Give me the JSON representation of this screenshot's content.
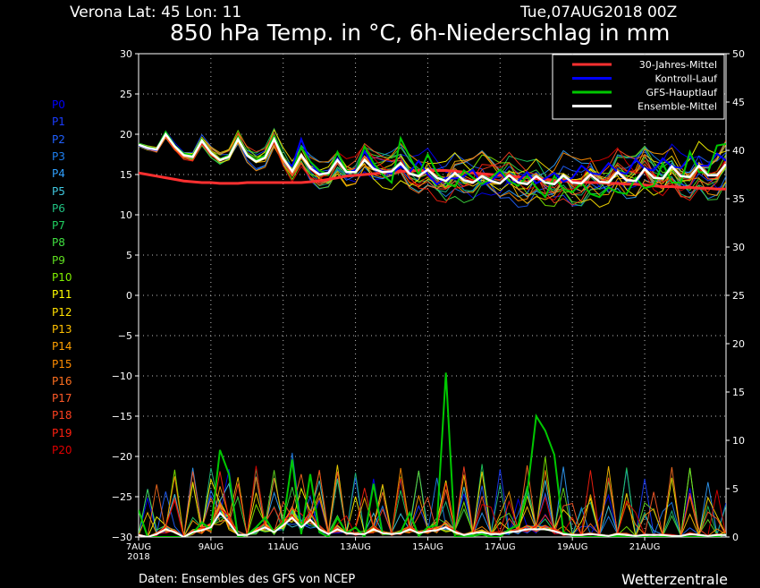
{
  "header": {
    "location": "Verona   Lat: 45 Lon: 11",
    "datetime": "Tue,07AUG2018 00Z",
    "title": "850 hPa Temp. in °C, 6h-Niederschlag in mm"
  },
  "footer": {
    "source": "Daten: Ensembles des GFS von NCEP",
    "brand": "Wetterzentrale"
  },
  "members": [
    {
      "label": "P0",
      "color": "#0000ff"
    },
    {
      "label": "P1",
      "color": "#1a3cff"
    },
    {
      "label": "P2",
      "color": "#2060ff"
    },
    {
      "label": "P3",
      "color": "#1e7ff0"
    },
    {
      "label": "P4",
      "color": "#30a0ff"
    },
    {
      "label": "P5",
      "color": "#40c8e0"
    },
    {
      "label": "P6",
      "color": "#20c080"
    },
    {
      "label": "P7",
      "color": "#20d060"
    },
    {
      "label": "P8",
      "color": "#40e040"
    },
    {
      "label": "P9",
      "color": "#60e020"
    },
    {
      "label": "P10",
      "color": "#80f000"
    },
    {
      "label": "P11",
      "color": "#ffff00"
    },
    {
      "label": "P12",
      "color": "#ffe000"
    },
    {
      "label": "P13",
      "color": "#ffc000"
    },
    {
      "label": "P14",
      "color": "#ffa000"
    },
    {
      "label": "P15",
      "color": "#ff8c00"
    },
    {
      "label": "P16",
      "color": "#ff7020"
    },
    {
      "label": "P17",
      "color": "#ff5a28"
    },
    {
      "label": "P18",
      "color": "#ff4020"
    },
    {
      "label": "P19",
      "color": "#ff2010"
    },
    {
      "label": "P20",
      "color": "#e00000"
    }
  ],
  "chart_data": {
    "type": "line",
    "x_ticks": [
      "7AUG\n2018",
      "9AUG",
      "11AUG",
      "13AUG",
      "15AUG",
      "17AUG",
      "19AUG",
      "21AUG"
    ],
    "x_tick_days": [
      0,
      2,
      4,
      6,
      8,
      10,
      12,
      14
    ],
    "x_range_days": [
      0,
      16.25
    ],
    "ylim_left": [
      -30,
      30
    ],
    "y_ticks_left": [
      30,
      25,
      20,
      15,
      10,
      5,
      0,
      -5,
      -10,
      -15,
      -20,
      -25,
      -30
    ],
    "ylim_right": [
      0,
      50
    ],
    "y_ticks_right": [
      50,
      45,
      40,
      35,
      30,
      25,
      20,
      15,
      10,
      5,
      0
    ],
    "grid": true,
    "legend_position": "top-right",
    "legend": [
      {
        "name": "30-Jahres-Mittel",
        "color": "#ff3030"
      },
      {
        "name": "Kontroll-Lauf",
        "color": "#0000ff"
      },
      {
        "name": "GFS-Hauptlauf",
        "color": "#00c800"
      },
      {
        "name": "Ensemble-Mittel",
        "color": "#ffffff"
      }
    ],
    "temp_series": [
      {
        "name": "30-Jahres-Mittel",
        "color": "#ff3030",
        "width": 3,
        "values": [
          15.2,
          15.0,
          14.8,
          14.6,
          14.4,
          14.2,
          14.1,
          14.0,
          14.0,
          13.9,
          13.9,
          13.9,
          14.0,
          14.0,
          14.0,
          14.0,
          14.0,
          14.0,
          14.0,
          14.1,
          14.2,
          14.4,
          14.6,
          14.8,
          14.9,
          15.0,
          15.1,
          15.2,
          15.3,
          15.4,
          15.4,
          15.5,
          15.5,
          15.5,
          15.5,
          15.4,
          15.3,
          15.2,
          15.1,
          15.0,
          14.9,
          14.8,
          14.7,
          14.6,
          14.5,
          14.4,
          14.3,
          14.2,
          14.2,
          14.1,
          14.0,
          14.0,
          13.9,
          13.9,
          13.8,
          13.8,
          13.7,
          13.6,
          13.5,
          13.5,
          13.4,
          13.4,
          13.3,
          13.3,
          13.2,
          13.2
        ]
      },
      {
        "name": "Kontroll-Lauf",
        "color": "#0000ff",
        "width": 2,
        "values": [
          18.6,
          18.2,
          18.0,
          20.1,
          18.6,
          17.4,
          17.2,
          19.3,
          17.8,
          16.8,
          17.2,
          19.6,
          17.4,
          16.6,
          17.2,
          19.7,
          17.0,
          16.0,
          19.4,
          16.6,
          15.0,
          15.3,
          17.0,
          15.2,
          15.6,
          17.9,
          16.0,
          15.4,
          15.1,
          16.0,
          15.3,
          16.7,
          15.0,
          13.8,
          14.6,
          14.5,
          14.8,
          15.6,
          13.7,
          14.1,
          15.4,
          13.9,
          14.2,
          15.3,
          13.9,
          14.5,
          15.2,
          14.1,
          14.6,
          16.1,
          15.2,
          15.0,
          16.4,
          15.3,
          15.1,
          16.9,
          15.7,
          15.5,
          17.0,
          16.0,
          15.8,
          17.2,
          16.1,
          16.1,
          17.6,
          16.7
        ]
      },
      {
        "name": "GFS-Hauptlauf",
        "color": "#00c800",
        "width": 2,
        "values": [
          18.8,
          18.4,
          18.2,
          20.3,
          18.6,
          17.6,
          17.4,
          19.4,
          17.8,
          16.9,
          17.4,
          19.7,
          17.6,
          16.8,
          17.4,
          19.8,
          17.2,
          15.5,
          18.4,
          16.6,
          15.5,
          15.0,
          17.8,
          15.5,
          15.2,
          18.5,
          16.4,
          15.0,
          14.0,
          19.5,
          17.2,
          15.0,
          17.5,
          15.2,
          14.0,
          13.5,
          15.5,
          14.6,
          13.8,
          14.6,
          15.6,
          14.2,
          13.6,
          14.8,
          13.4,
          12.2,
          14.8,
          13.2,
          12.8,
          14.0,
          12.6,
          12.2,
          13.4,
          12.8,
          12.6,
          14.6,
          13.3,
          13.6,
          16.4,
          14.0,
          14.0,
          17.8,
          15.3,
          15.2,
          18.6,
          18.8
        ]
      },
      {
        "name": "Ensemble-Mittel",
        "color": "#ffffff",
        "width": 2.5,
        "values": [
          18.7,
          18.3,
          18.1,
          20.0,
          18.5,
          17.4,
          17.2,
          19.2,
          17.7,
          16.8,
          17.2,
          19.4,
          17.4,
          16.6,
          17.1,
          19.4,
          17.0,
          15.4,
          17.4,
          15.8,
          15.0,
          15.2,
          16.8,
          15.3,
          15.3,
          16.8,
          15.7,
          15.3,
          15.4,
          16.4,
          15.1,
          14.8,
          15.6,
          14.6,
          14.2,
          15.2,
          14.3,
          14.0,
          14.8,
          14.2,
          13.9,
          14.9,
          14.0,
          13.8,
          14.8,
          14.0,
          13.8,
          14.9,
          14.0,
          13.9,
          15.0,
          14.1,
          14.0,
          15.3,
          14.3,
          14.2,
          15.7,
          14.6,
          14.5,
          16.0,
          14.8,
          14.7,
          16.1,
          14.9,
          14.9,
          16.3
        ]
      }
    ],
    "precip_series": [
      {
        "name": "GFS-Hauptlauf",
        "color": "#00c800",
        "width": 2,
        "values": [
          2.8,
          0,
          0,
          0,
          0,
          0,
          0.4,
          1.5,
          0.8,
          9.0,
          6.5,
          0,
          0.2,
          1.0,
          2.0,
          0.5,
          1.5,
          8.0,
          0.3,
          6.5,
          0.5,
          0,
          2.0,
          0.4,
          1.0,
          0,
          5.5,
          0.3,
          0.3,
          0.5,
          2.5,
          0.1,
          1.0,
          1.2,
          17.0,
          0,
          0.1,
          0.1,
          0.3,
          0,
          0,
          0.8,
          1.2,
          4.5,
          12.5,
          11,
          8.5,
          0.5,
          0.1,
          0,
          0,
          0,
          0,
          0.1,
          0,
          0,
          0,
          0,
          0,
          0,
          0,
          0,
          0,
          0,
          0,
          0.3
        ]
      },
      {
        "name": "Ensemble-Mittel",
        "color": "#ffffff",
        "width": 2,
        "values": [
          0.2,
          0,
          0.3,
          0.8,
          0.5,
          0,
          0.5,
          0.7,
          1.0,
          2.5,
          1.5,
          0.2,
          0.2,
          0.6,
          1.0,
          0.5,
          1.2,
          2.0,
          1.0,
          1.8,
          0.8,
          0.3,
          0.8,
          0.4,
          0.3,
          0.3,
          0.8,
          0.4,
          0.3,
          0.4,
          0.8,
          0.4,
          0.6,
          0.7,
          1.0,
          0.5,
          0.2,
          0.4,
          0.5,
          0.3,
          0.3,
          0.5,
          0.6,
          0.8,
          0.8,
          0.8,
          0.6,
          0.3,
          0.2,
          0.2,
          0.3,
          0.2,
          0.1,
          0.3,
          0.2,
          0.1,
          0.2,
          0.2,
          0.2,
          0.1,
          0.1,
          0.3,
          0.2,
          0.1,
          0.2,
          0.2
        ]
      }
    ]
  }
}
